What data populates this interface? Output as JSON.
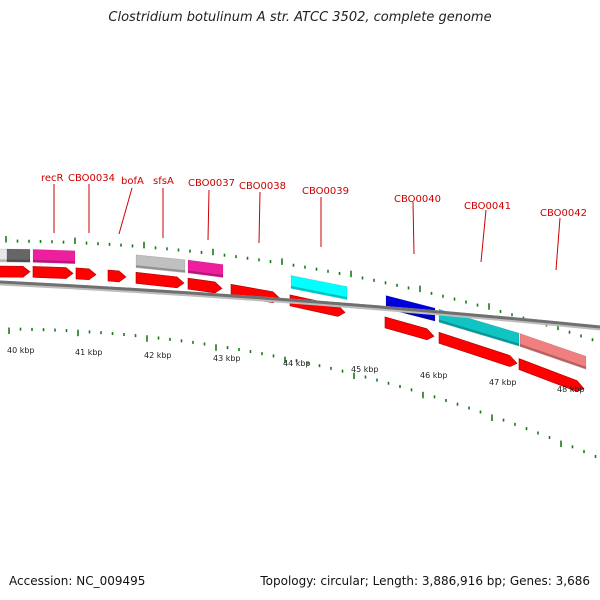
{
  "title": "Clostridium botulinum A str. ATCC 3502, complete genome",
  "footer": {
    "accession": "Accession: NC_009495",
    "summary": "Topology: circular; Length: 3,886,916 bp; Genes: 3,686"
  },
  "colors": {
    "backbone": "#808080",
    "cds_forward": "#ff0000",
    "label": "#cc0000",
    "tick": "#1a7a1a",
    "scale_text": "#222222"
  },
  "scale": {
    "unit": "kbp",
    "labels": [
      "40 kbp",
      "41 kbp",
      "42 kbp",
      "43 kbp",
      "44 kbp",
      "45 kbp",
      "46 kbp",
      "47 kbp",
      "48 kbp"
    ]
  },
  "features": {
    "gene_labels": [
      "recR",
      "CBO0034",
      "bofA",
      "sfsA",
      "CBO0037",
      "CBO0038",
      "CBO0039",
      "CBO0040",
      "CBO0041",
      "CBO0042"
    ],
    "cog_colors": [
      "#e8e8e8",
      "#666666",
      "#ee1f9e",
      "#c0c0c0",
      "#ee1f9e",
      "#00ffff",
      "#0000dd",
      "#11c4c4",
      "#f08080"
    ]
  }
}
